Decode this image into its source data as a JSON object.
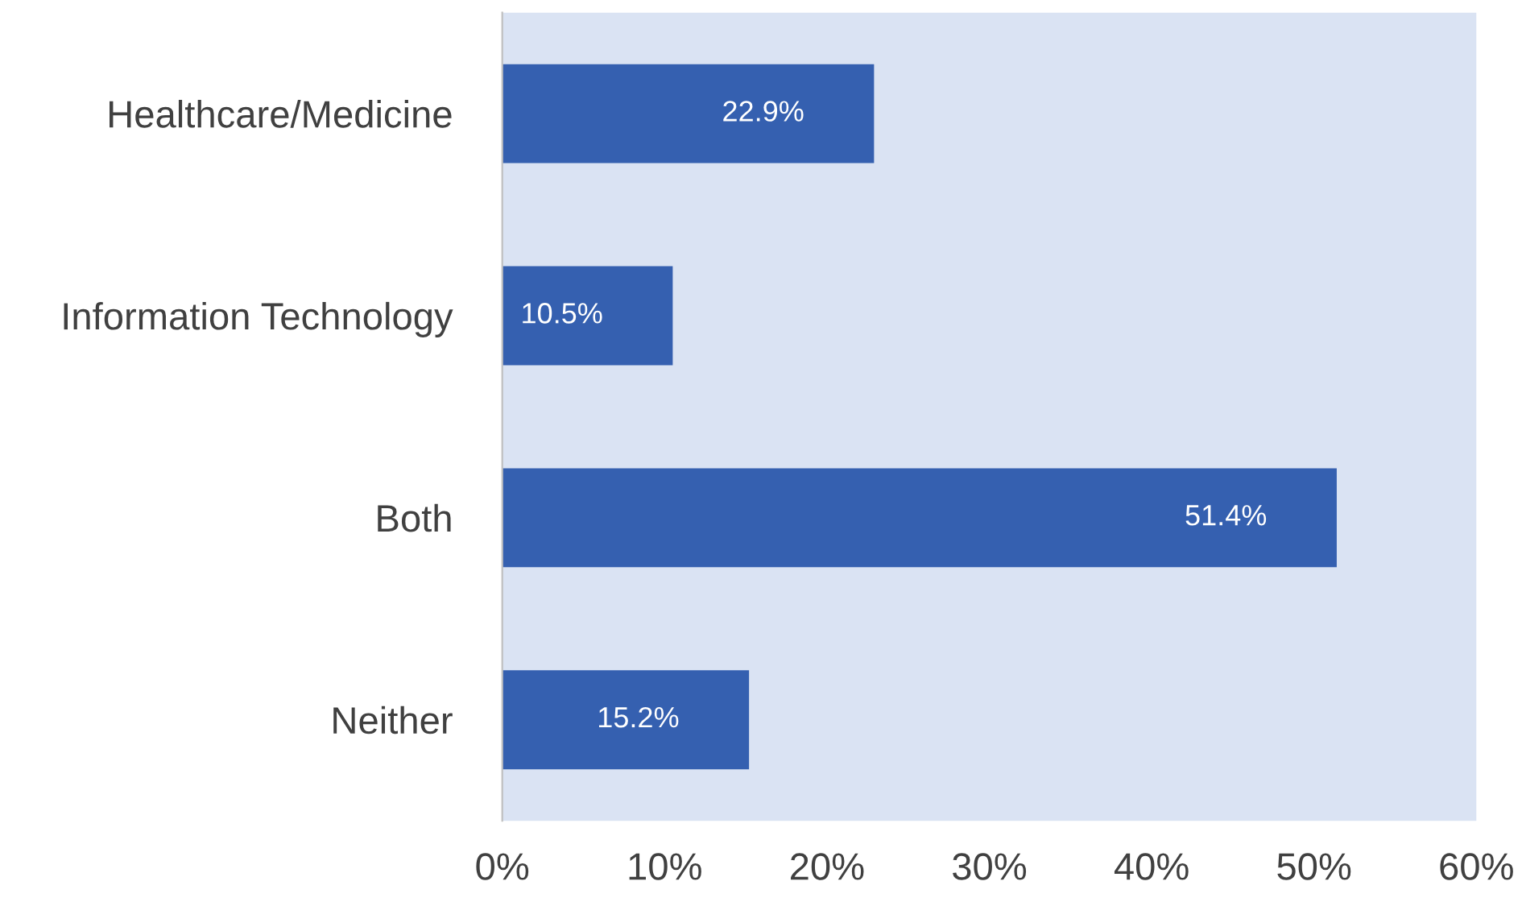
{
  "chart_data": {
    "type": "bar",
    "orientation": "horizontal",
    "categories": [
      "Healthcare/Medicine",
      "Information Technology",
      "Both",
      "Neither"
    ],
    "values": [
      22.9,
      10.5,
      51.4,
      15.2
    ],
    "value_labels": [
      "22.9%",
      "10.5%",
      "51.4%",
      "15.2%"
    ],
    "color": "#3560b0",
    "xlim": [
      0,
      60
    ],
    "xticks": [
      {
        "value": 0,
        "label": "0%"
      },
      {
        "value": 10,
        "label": "10%"
      },
      {
        "value": 20,
        "label": "20%"
      },
      {
        "value": 30,
        "label": "30%"
      },
      {
        "value": 40,
        "label": "40%"
      },
      {
        "value": 50,
        "label": "50%"
      },
      {
        "value": 60,
        "label": "60%"
      }
    ],
    "grid": false,
    "legend": false
  }
}
